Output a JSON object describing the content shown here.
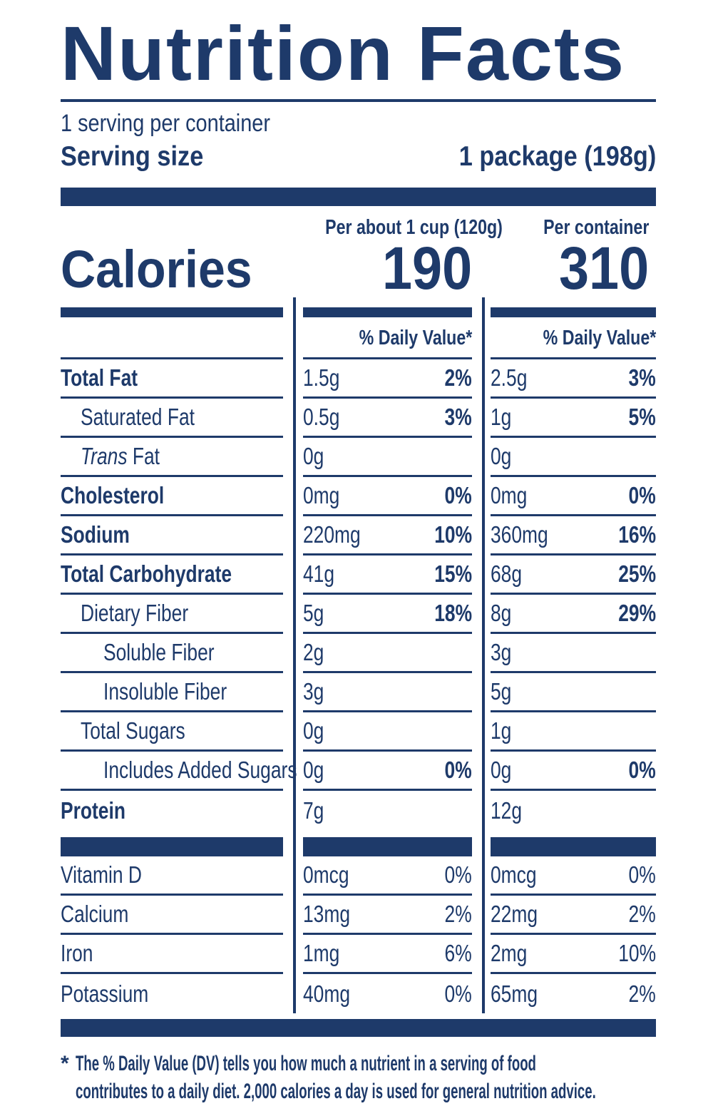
{
  "colors": {
    "navy": "#1E3A6A"
  },
  "header": {
    "title": "Nutrition Facts",
    "servings_per_container": "1 serving per container",
    "serving_size_label": "Serving size",
    "serving_size_value": "1 package (198g)"
  },
  "columns": {
    "per_serving_header": "Per about 1 cup (120g)",
    "per_container_header": "Per container",
    "daily_value_header": "% Daily Value*"
  },
  "calories": {
    "label": "Calories",
    "per_serving": "190",
    "per_container": "310"
  },
  "nutrients": [
    {
      "name": "Total Fat",
      "bold": true,
      "indent": 0,
      "amount_per_serving": "1.5g",
      "dv_per_serving": "2%",
      "amount_per_container": "2.5g",
      "dv_per_container": "3%"
    },
    {
      "name": "Saturated Fat",
      "bold": false,
      "indent": 1,
      "amount_per_serving": "0.5g",
      "dv_per_serving": "3%",
      "amount_per_container": "1g",
      "dv_per_container": "5%"
    },
    {
      "name_italic": "Trans",
      "name": " Fat",
      "bold": false,
      "indent": 1,
      "amount_per_serving": "0g",
      "dv_per_serving": "",
      "amount_per_container": "0g",
      "dv_per_container": ""
    },
    {
      "name": "Cholesterol",
      "bold": true,
      "indent": 0,
      "amount_per_serving": "0mg",
      "dv_per_serving": "0%",
      "amount_per_container": "0mg",
      "dv_per_container": "0%"
    },
    {
      "name": "Sodium",
      "bold": true,
      "indent": 0,
      "amount_per_serving": "220mg",
      "dv_per_serving": "10%",
      "amount_per_container": "360mg",
      "dv_per_container": "16%"
    },
    {
      "name": "Total Carbohydrate",
      "bold": true,
      "indent": 0,
      "amount_per_serving": "41g",
      "dv_per_serving": "15%",
      "amount_per_container": "68g",
      "dv_per_container": "25%"
    },
    {
      "name": "Dietary Fiber",
      "bold": false,
      "indent": 1,
      "amount_per_serving": "5g",
      "dv_per_serving": "18%",
      "amount_per_container": "8g",
      "dv_per_container": "29%"
    },
    {
      "name": "Soluble Fiber",
      "bold": false,
      "indent": 2,
      "amount_per_serving": "2g",
      "dv_per_serving": "",
      "amount_per_container": "3g",
      "dv_per_container": ""
    },
    {
      "name": "Insoluble Fiber",
      "bold": false,
      "indent": 2,
      "amount_per_serving": "3g",
      "dv_per_serving": "",
      "amount_per_container": "5g",
      "dv_per_container": ""
    },
    {
      "name": "Total Sugars",
      "bold": false,
      "indent": 1,
      "amount_per_serving": "0g",
      "dv_per_serving": "",
      "amount_per_container": "1g",
      "dv_per_container": ""
    },
    {
      "name": "Includes Added Sugars",
      "bold": false,
      "indent": 2,
      "amount_per_serving": "0g",
      "dv_per_serving": "0%",
      "amount_per_container": "0g",
      "dv_per_container": "0%"
    },
    {
      "name": "Protein",
      "bold": true,
      "indent": 0,
      "amount_per_serving": "7g",
      "dv_per_serving": "",
      "amount_per_container": "12g",
      "dv_per_container": ""
    }
  ],
  "vitamins": [
    {
      "name": "Vitamin D",
      "amount_per_serving": "0mcg",
      "dv_per_serving": "0%",
      "amount_per_container": "0mcg",
      "dv_per_container": "0%"
    },
    {
      "name": "Calcium",
      "amount_per_serving": "13mg",
      "dv_per_serving": "2%",
      "amount_per_container": "22mg",
      "dv_per_container": "2%"
    },
    {
      "name": "Iron",
      "amount_per_serving": "1mg",
      "dv_per_serving": "6%",
      "amount_per_container": "2mg",
      "dv_per_container": "10%"
    },
    {
      "name": "Potassium",
      "amount_per_serving": "40mg",
      "dv_per_serving": "0%",
      "amount_per_container": "65mg",
      "dv_per_container": "2%"
    }
  ],
  "footnote": {
    "marker": "*",
    "line1": "The % Daily Value (DV) tells you how much a nutrient in a serving of food",
    "line2": "contributes to a daily diet. 2,000 calories a day is used for general nutrition advice."
  }
}
